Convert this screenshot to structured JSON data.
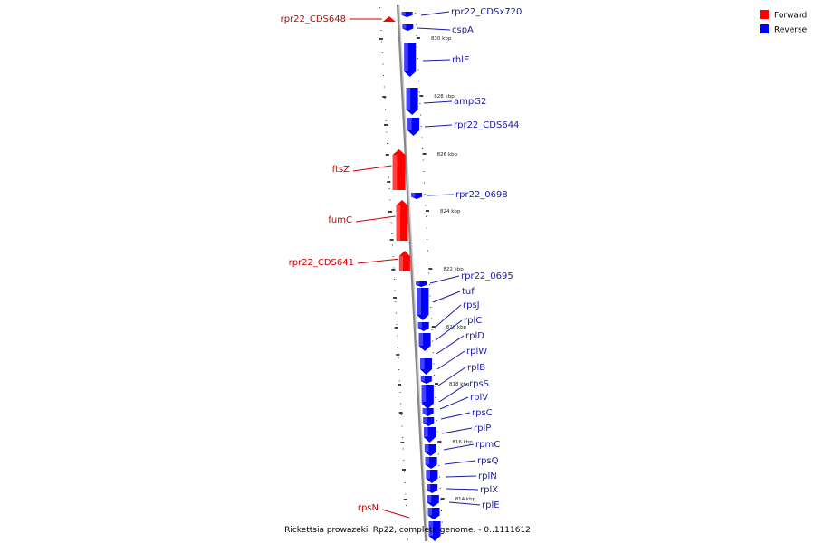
{
  "caption": "Rickettsia prowazekii Rp22, complete genome. - 0..1111612",
  "legend": [
    {
      "label": "Forward",
      "color": "#ff0000"
    },
    {
      "label": "Reverse",
      "color": "#0000ff"
    }
  ],
  "colors": {
    "forward": "#ff0000",
    "reverse": "#0000ff",
    "forward_label": "#cc0000",
    "reverse_label": "#1a1aa8",
    "backbone": "#888888"
  },
  "ticks": [
    "830 kbp",
    "828 kbp",
    "826 kbp",
    "824 kbp",
    "822 kbp",
    "820 kbp",
    "818 kbp",
    "816 kbp",
    "814 kbp"
  ],
  "forward_genes": [
    {
      "name": "rpr22_CDS648"
    },
    {
      "name": "ftsZ"
    },
    {
      "name": "fumC"
    },
    {
      "name": "rpr22_CDS641"
    },
    {
      "name": "rpsN"
    }
  ],
  "reverse_genes": [
    {
      "name": "rpr22_CDSx720"
    },
    {
      "name": "cspA"
    },
    {
      "name": "rhlE"
    },
    {
      "name": "ampG2"
    },
    {
      "name": "rpr22_CDS644"
    },
    {
      "name": "rpr22_0698"
    },
    {
      "name": "rpr22_0695"
    },
    {
      "name": "tuf"
    },
    {
      "name": "rpsJ"
    },
    {
      "name": "rplC"
    },
    {
      "name": "rplD"
    },
    {
      "name": "rplW"
    },
    {
      "name": "rplB"
    },
    {
      "name": "rpsS"
    },
    {
      "name": "rplV"
    },
    {
      "name": "rpsC"
    },
    {
      "name": "rplP"
    },
    {
      "name": "rpmC"
    },
    {
      "name": "rpsQ"
    },
    {
      "name": "rplN"
    },
    {
      "name": "rplX"
    },
    {
      "name": "rplE"
    }
  ]
}
